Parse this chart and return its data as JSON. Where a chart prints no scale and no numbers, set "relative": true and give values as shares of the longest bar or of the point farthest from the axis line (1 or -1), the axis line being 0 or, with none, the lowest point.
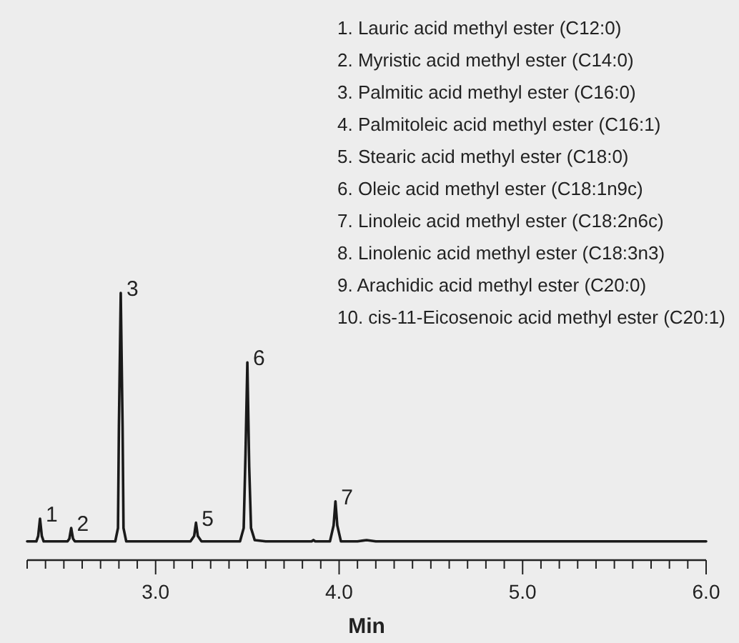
{
  "chart_data": {
    "type": "line",
    "relative": true,
    "xlabel": "Min",
    "xlim": [
      2.3,
      6.0
    ],
    "xticks": [
      {
        "value": 2.3,
        "label": null
      },
      {
        "value": 2.4,
        "label": null
      },
      {
        "value": 2.5,
        "label": null
      },
      {
        "value": 2.6,
        "label": null
      },
      {
        "value": 2.7,
        "label": null
      },
      {
        "value": 2.8,
        "label": null
      },
      {
        "value": 2.9,
        "label": null
      },
      {
        "value": 3.0,
        "label": "3.0"
      },
      {
        "value": 3.1,
        "label": null
      },
      {
        "value": 3.2,
        "label": null
      },
      {
        "value": 3.3,
        "label": null
      },
      {
        "value": 3.4,
        "label": null
      },
      {
        "value": 3.5,
        "label": null
      },
      {
        "value": 3.6,
        "label": null
      },
      {
        "value": 3.7,
        "label": null
      },
      {
        "value": 3.8,
        "label": null
      },
      {
        "value": 3.9,
        "label": null
      },
      {
        "value": 4.0,
        "label": "4.0"
      },
      {
        "value": 4.1,
        "label": null
      },
      {
        "value": 4.2,
        "label": null
      },
      {
        "value": 4.3,
        "label": null
      },
      {
        "value": 4.4,
        "label": null
      },
      {
        "value": 4.5,
        "label": null
      },
      {
        "value": 4.6,
        "label": null
      },
      {
        "value": 4.7,
        "label": null
      },
      {
        "value": 4.8,
        "label": null
      },
      {
        "value": 4.9,
        "label": null
      },
      {
        "value": 5.0,
        "label": "5.0"
      },
      {
        "value": 5.1,
        "label": null
      },
      {
        "value": 5.2,
        "label": null
      },
      {
        "value": 5.3,
        "label": null
      },
      {
        "value": 5.4,
        "label": null
      },
      {
        "value": 5.5,
        "label": null
      },
      {
        "value": 5.6,
        "label": null
      },
      {
        "value": 5.7,
        "label": null
      },
      {
        "value": 5.8,
        "label": null
      },
      {
        "value": 5.9,
        "label": null
      },
      {
        "value": 6.0,
        "label": "6.0"
      }
    ],
    "series": [
      {
        "color": "#1a1a1a",
        "x": [
          2.3,
          2.35,
          2.36,
          2.37,
          2.38,
          2.39,
          2.52,
          2.53,
          2.54,
          2.55,
          2.56,
          2.78,
          2.795,
          2.8,
          2.81,
          2.82,
          2.825,
          2.84,
          3.19,
          3.21,
          3.22,
          3.23,
          3.25,
          3.46,
          3.48,
          3.49,
          3.5,
          3.51,
          3.52,
          3.54,
          3.6,
          3.85,
          3.86,
          3.87,
          3.95,
          3.97,
          3.98,
          3.99,
          4.01,
          4.1,
          4.15,
          4.2,
          5.0,
          6.0
        ],
        "values": [
          0.07,
          0.07,
          0.09,
          0.155,
          0.09,
          0.07,
          0.07,
          0.08,
          0.12,
          0.08,
          0.07,
          0.07,
          0.12,
          0.5,
          1.0,
          0.5,
          0.12,
          0.07,
          0.07,
          0.09,
          0.14,
          0.09,
          0.07,
          0.07,
          0.12,
          0.4,
          0.74,
          0.35,
          0.12,
          0.075,
          0.07,
          0.07,
          0.075,
          0.07,
          0.07,
          0.13,
          0.22,
          0.13,
          0.07,
          0.07,
          0.075,
          0.07,
          0.07,
          0.07
        ]
      }
    ],
    "annotations": [
      "1.  Lauric acid methyl ester (C12:0)",
      "2.  Myristic acid methyl ester (C14:0)",
      "3.  Palmitic acid methyl ester (C16:0)",
      "4.  Palmitoleic acid methyl ester (C16:1)",
      "5.  Stearic acid methyl ester (C18:0)",
      "6.  Oleic acid methyl ester (C18:1n9c)",
      "7.  Linoleic acid methyl ester (C18:2n6c)",
      "8.  Linolenic acid methyl ester (C18:3n3)",
      "9.  Arachidic acid methyl ester (C20:0)",
      "10.  cis-11-Eicosenoic acid methyl ester (C20:1)",
      {
        "text": "1",
        "x": 2.37,
        "y": 0.155
      },
      {
        "text": "2",
        "x": 2.54,
        "y": 0.12
      },
      {
        "text": "3",
        "x": 2.81,
        "y": 1.0
      },
      {
        "text": "5",
        "x": 3.22,
        "y": 0.14
      },
      {
        "text": "6",
        "x": 3.5,
        "y": 0.74
      },
      {
        "text": "7",
        "x": 3.98,
        "y": 0.22
      }
    ]
  }
}
